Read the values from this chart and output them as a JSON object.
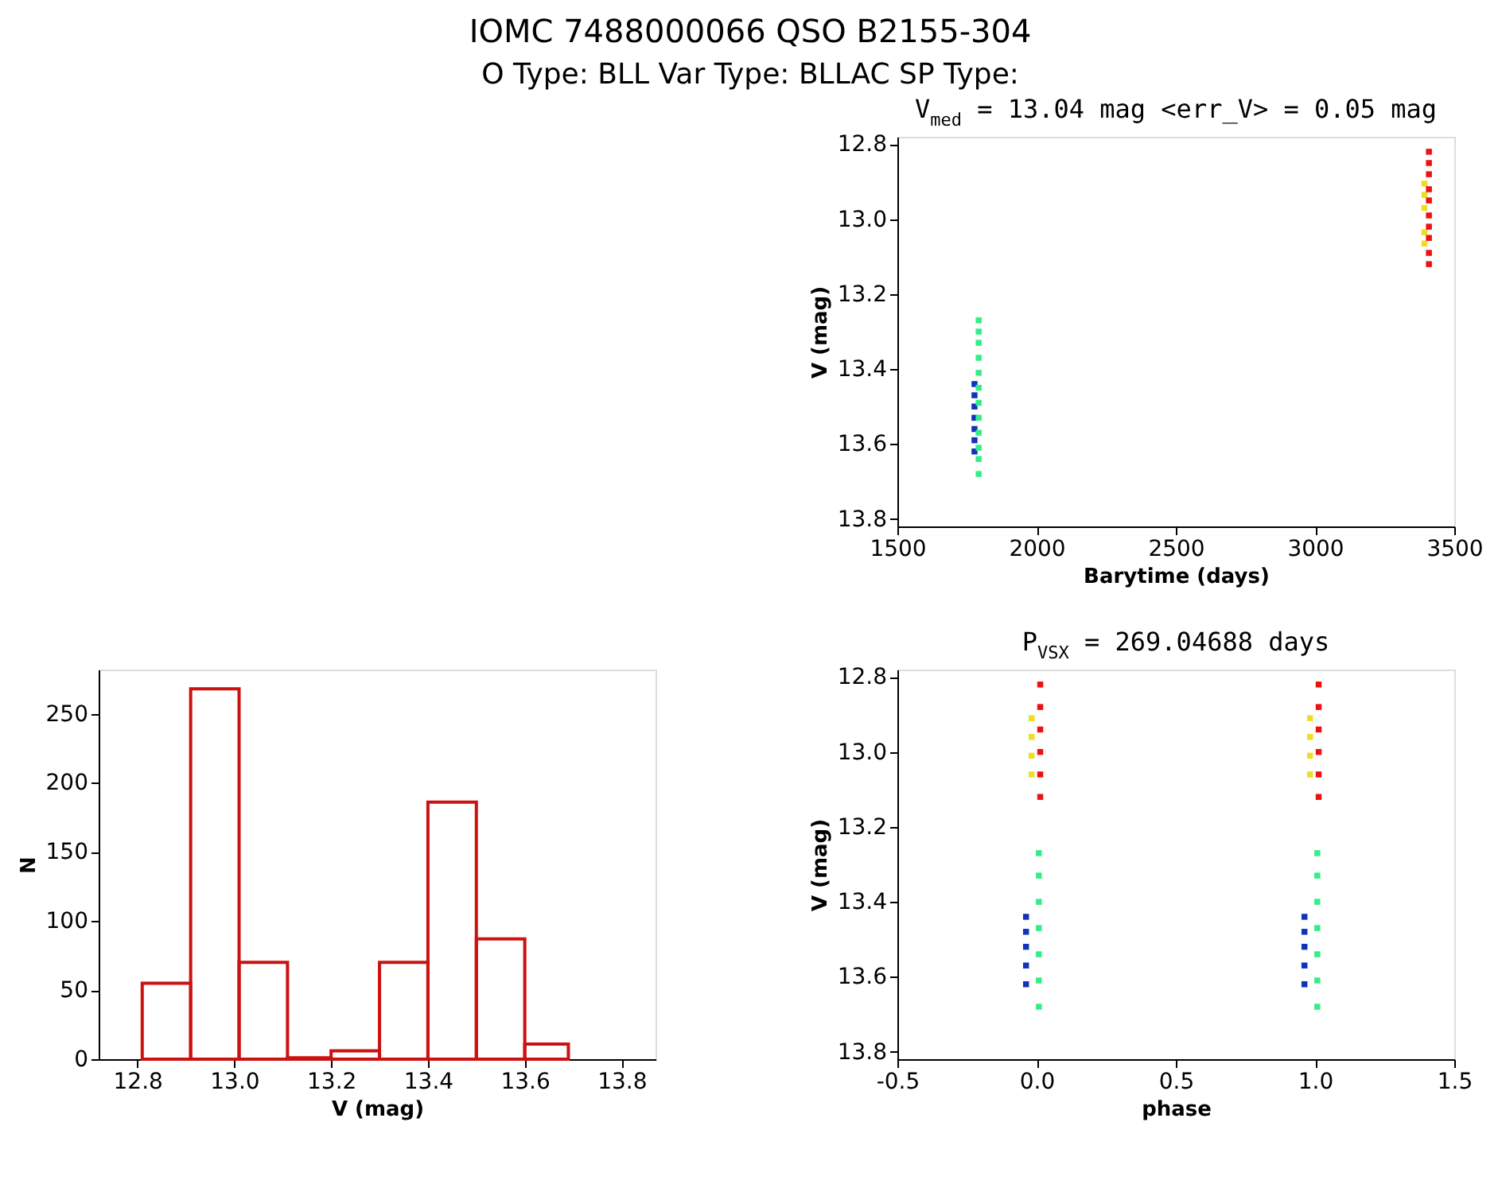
{
  "chart_data": [
    {
      "type": "other",
      "title": "IOMC 7488000066    QSO B2155-304",
      "subtitle": "O Type: BLL  Var Type: BLLAC  SP Type:"
    },
    {
      "type": "scatter",
      "title": "V$_{med}$ = 13.04 mag <err_V> = 0.05 mag",
      "xlabel": "Barytime (days)",
      "ylabel": "V (mag)",
      "xlim": [
        1500,
        3500
      ],
      "xticks": [
        1500,
        2000,
        2500,
        3000,
        3500
      ],
      "ylim": [
        13.82,
        12.78
      ],
      "yticks": [
        12.8,
        {
          "value": 13,
          "label": "13.0"
        },
        13.2,
        13.4,
        13.6,
        13.8
      ],
      "grid": false,
      "legend": false,
      "marker": "square",
      "series": [
        {
          "color": "#1133bb",
          "x": [
            1777,
            1777,
            1777,
            1777,
            1777,
            1777,
            1777
          ],
          "values": [
            13.44,
            13.47,
            13.5,
            13.53,
            13.56,
            13.59,
            13.62
          ]
        },
        {
          "color": "#33ee88",
          "x": [
            1792,
            1792,
            1792,
            1792,
            1792,
            1792,
            1792,
            1792,
            1792,
            1792,
            1792,
            1792
          ],
          "values": [
            13.27,
            13.3,
            13.33,
            13.37,
            13.41,
            13.45,
            13.49,
            13.53,
            13.57,
            13.61,
            13.64,
            13.68
          ]
        },
        {
          "color": "#eedd22",
          "x": [
            3393,
            3393,
            3393,
            3393,
            3393
          ],
          "values": [
            12.905,
            12.935,
            12.97,
            13.035,
            13.065
          ]
        },
        {
          "color": "#ee1111",
          "x": [
            3409,
            3409,
            3409,
            3409,
            3409,
            3409,
            3409,
            3409,
            3409,
            3409
          ],
          "values": [
            12.82,
            12.85,
            12.88,
            12.92,
            12.95,
            12.99,
            13.02,
            13.05,
            13.09,
            13.12
          ]
        }
      ]
    },
    {
      "type": "histogram",
      "xlabel": "V (mag)",
      "ylabel": "N",
      "bins": [
        12.81,
        12.91,
        13.01,
        13.11,
        13.2,
        13.3,
        13.4,
        13.5,
        13.6,
        13.69
      ],
      "values": [
        55,
        268,
        70,
        1,
        6,
        70,
        186,
        87,
        11
      ],
      "color": "#cc1111",
      "xlim": [
        12.72,
        13.87
      ],
      "xticks": [
        12.8,
        {
          "value": 13,
          "label": "13.0"
        },
        13.2,
        13.4,
        13.6,
        13.8
      ],
      "ylim": [
        0,
        282
      ],
      "yticks": [
        0,
        50,
        100,
        150,
        200,
        250
      ],
      "grid": false
    },
    {
      "type": "scatter",
      "title": "P$_{VSX}$ = 269.04688 days",
      "xlabel": "phase",
      "ylabel": "V (mag)",
      "xlim": [
        -0.5,
        1.5
      ],
      "xticks": [
        -0.5,
        {
          "value": 0,
          "label": "0.0"
        },
        0.5,
        {
          "value": 1,
          "label": "1.0"
        },
        1.5
      ],
      "ylim": [
        13.82,
        12.78
      ],
      "yticks": [
        12.8,
        {
          "value": 13,
          "label": "13.0"
        },
        13.2,
        13.4,
        13.6,
        13.8
      ],
      "grid": false,
      "legend": false,
      "marker": "square",
      "series": [
        {
          "color": "#1133bb",
          "x": [
            -0.038,
            -0.038,
            -0.038,
            -0.038,
            -0.038,
            0.962,
            0.962,
            0.962,
            0.962,
            0.962
          ],
          "values": [
            13.44,
            13.48,
            13.52,
            13.57,
            13.62,
            13.44,
            13.48,
            13.52,
            13.57,
            13.62
          ]
        },
        {
          "color": "#33ee88",
          "x": [
            0.008,
            0.008,
            0.008,
            0.008,
            0.008,
            0.008,
            0.008,
            1.008,
            1.008,
            1.008,
            1.008,
            1.008,
            1.008,
            1.008
          ],
          "values": [
            13.27,
            13.33,
            13.4,
            13.47,
            13.54,
            13.61,
            13.68,
            13.27,
            13.33,
            13.4,
            13.47,
            13.54,
            13.61,
            13.68
          ]
        },
        {
          "color": "#eedd22",
          "x": [
            -0.018,
            -0.018,
            -0.018,
            -0.018,
            0.982,
            0.982,
            0.982,
            0.982
          ],
          "values": [
            12.91,
            12.96,
            13.01,
            13.06,
            12.91,
            12.96,
            13.01,
            13.06
          ]
        },
        {
          "color": "#ee1111",
          "x": [
            0.013,
            0.013,
            0.013,
            0.013,
            0.013,
            0.013,
            1.013,
            1.013,
            1.013,
            1.013,
            1.013,
            1.013
          ],
          "values": [
            12.82,
            12.88,
            12.94,
            13.0,
            13.06,
            13.12,
            12.82,
            12.88,
            12.94,
            13.0,
            13.06,
            13.12
          ]
        }
      ]
    }
  ]
}
